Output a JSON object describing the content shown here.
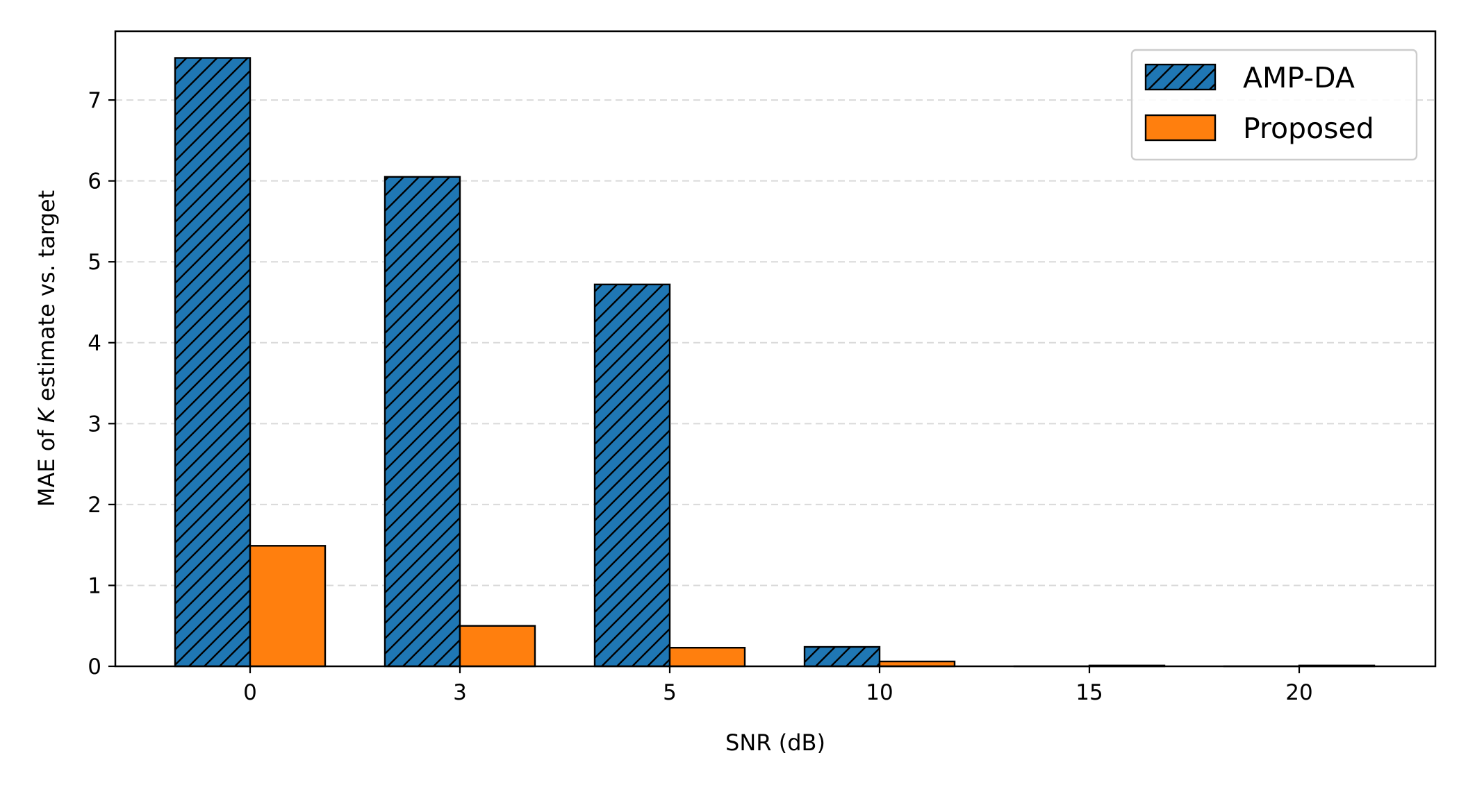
{
  "chart_data": {
    "type": "bar",
    "xlabel": "SNR (dB)",
    "ylabel_parts": [
      "MAE of ",
      "K",
      " estimate vs. target"
    ],
    "categories": [
      "0",
      "3",
      "5",
      "10",
      "15",
      "20"
    ],
    "ylim": [
      0,
      7.85
    ],
    "yticks": [
      0,
      1,
      2,
      3,
      4,
      5,
      6,
      7
    ],
    "grid": "y-dashed",
    "legend_position": "top-right",
    "series": [
      {
        "name": "AMP-DA",
        "values": [
          7.52,
          6.05,
          4.72,
          0.24,
          0.0,
          0.0
        ],
        "color": "#1f77b4",
        "hatch": "diagonal"
      },
      {
        "name": "Proposed",
        "values": [
          1.49,
          0.5,
          0.23,
          0.06,
          0.01,
          0.01
        ],
        "color": "#ff7f0e",
        "hatch": "none"
      }
    ]
  }
}
